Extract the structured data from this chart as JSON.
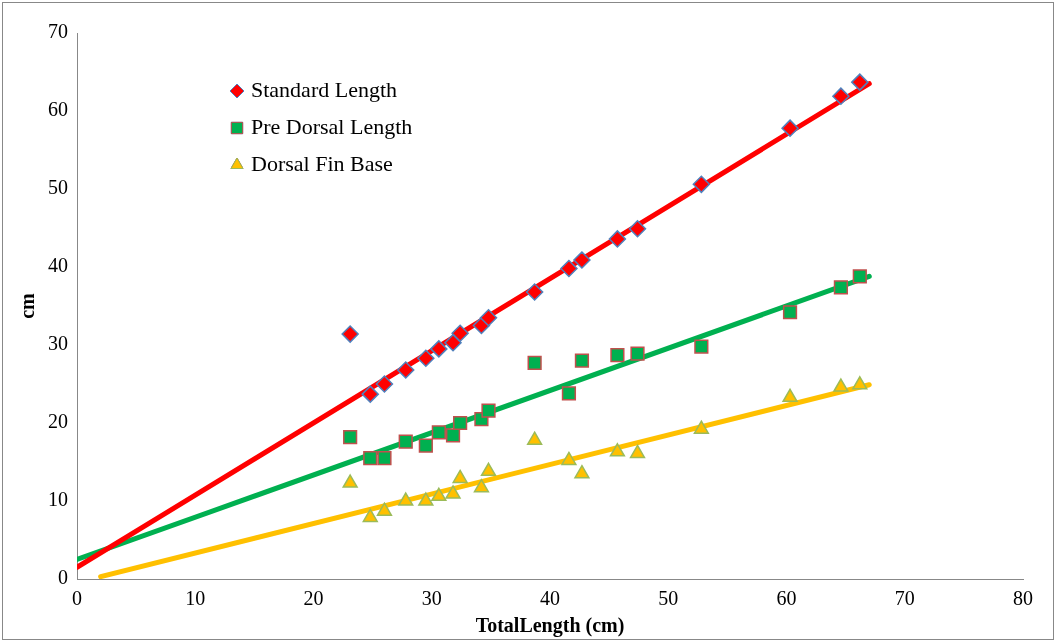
{
  "chart_data": {
    "type": "scatter",
    "xlabel": "TotalLength (cm)",
    "ylabel": "cm",
    "xlim": [
      0,
      80
    ],
    "xticks": [
      0,
      10,
      20,
      30,
      40,
      50,
      60,
      70,
      80
    ],
    "ylim": [
      0,
      70
    ],
    "yticks": [
      0,
      10,
      20,
      30,
      40,
      50,
      60,
      70
    ],
    "grid": false,
    "legend": "top left",
    "x": [
      23.1,
      24.8,
      26.0,
      27.8,
      29.5,
      30.6,
      31.8,
      32.4,
      34.2,
      34.8,
      38.7,
      41.6,
      42.7,
      45.7,
      47.4,
      52.8,
      60.3,
      64.6,
      66.2
    ],
    "series": [
      {
        "name": "Standard Length",
        "color": "#ff0000",
        "marker": "diamond",
        "values": [
          31.4,
          23.7,
          25.0,
          26.8,
          28.3,
          29.5,
          30.3,
          31.5,
          32.5,
          33.5,
          36.8,
          39.8,
          40.9,
          43.6,
          44.9,
          50.6,
          57.8,
          61.9,
          63.7
        ]
      },
      {
        "name": "Pre Dorsal Length",
        "color": "#00b050",
        "marker": "square",
        "values": [
          18.2,
          15.5,
          15.5,
          17.6,
          17.1,
          18.8,
          18.4,
          20.0,
          20.5,
          21.6,
          27.7,
          23.8,
          28.0,
          28.7,
          28.9,
          29.8,
          34.2,
          37.4,
          38.8
        ]
      },
      {
        "name": "Dorsal Fin Base",
        "color": "#ffc000",
        "marker": "triangle",
        "values": [
          12.3,
          7.9,
          8.7,
          10.0,
          10.0,
          10.6,
          10.9,
          12.9,
          11.7,
          13.8,
          17.8,
          15.2,
          13.5,
          16.3,
          16.1,
          19.2,
          23.3,
          24.6,
          24.9
        ]
      },
      {
        "type": "line",
        "color": "#ff0000",
        "marker": "none",
        "x": [
          0,
          67
        ],
        "values": [
          1.5,
          63.5
        ]
      },
      {
        "type": "line",
        "color": "#00b050",
        "marker": "none",
        "x": [
          0,
          67
        ],
        "values": [
          2.5,
          38.8
        ]
      },
      {
        "type": "line",
        "color": "#ffc000",
        "marker": "none",
        "x": [
          2,
          67
        ],
        "values": [
          0.3,
          24.9
        ]
      }
    ]
  }
}
